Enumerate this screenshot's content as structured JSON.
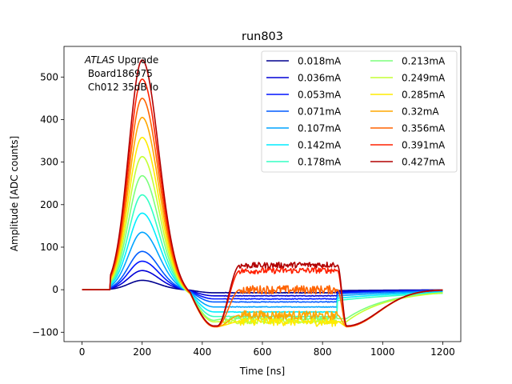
{
  "chart_data": {
    "type": "line",
    "title": "run803",
    "xlabel": "Time [ns]",
    "ylabel": "Amplitude [ADC counts]",
    "xlim": [
      -60,
      1260
    ],
    "ylim": [
      -122,
      572
    ],
    "xticks": [
      0,
      200,
      400,
      600,
      800,
      1000,
      1200
    ],
    "yticks": [
      -100,
      0,
      100,
      200,
      300,
      400,
      500
    ],
    "grid": false,
    "legend_position": "top-right",
    "legend_columns": 2,
    "annotation": {
      "italic": "ATLAS",
      "line1_rest": " Upgrade",
      "line2": " Board186975",
      "line3": " Ch012 35dB lo"
    },
    "series": [
      {
        "name": "0.018mA",
        "color": "#00008f",
        "peak": 22,
        "under": -8,
        "plateau": -8
      },
      {
        "name": "0.036mA",
        "color": "#0000d6",
        "peak": 45,
        "under": -16,
        "plateau": -14
      },
      {
        "name": "0.053mA",
        "color": "#0014ff",
        "peak": 67,
        "under": -24,
        "plateau": -20
      },
      {
        "name": "0.071mA",
        "color": "#005cff",
        "peak": 90,
        "under": -32,
        "plateau": -27
      },
      {
        "name": "0.107mA",
        "color": "#00a4ff",
        "peak": 135,
        "under": -45,
        "plateau": -38
      },
      {
        "name": "0.142mA",
        "color": "#00ecff",
        "peak": 180,
        "under": -58,
        "plateau": -48
      },
      {
        "name": "0.178mA",
        "color": "#34ffc4",
        "peak": 223,
        "under": -70,
        "plateau": -58
      },
      {
        "name": "0.213mA",
        "color": "#7cff7c",
        "peak": 268,
        "under": -80,
        "plateau": -68
      },
      {
        "name": "0.249mA",
        "color": "#c4ff34",
        "peak": 313,
        "under": -84,
        "plateau": -75
      },
      {
        "name": "0.285mA",
        "color": "#ffeb00",
        "peak": 358,
        "under": -86,
        "plateau": -75
      },
      {
        "name": "0.32mA",
        "color": "#ffa700",
        "peak": 405,
        "under": -87,
        "plateau": -60
      },
      {
        "name": "0.356mA",
        "color": "#ff6300",
        "peak": 450,
        "under": -87,
        "plateau": 0
      },
      {
        "name": "0.391mA",
        "color": "#ff2000",
        "peak": 495,
        "under": -86,
        "plateau": 45
      },
      {
        "name": "0.427mA",
        "color": "#b20000",
        "peak": 540,
        "under": -85,
        "plateau": 58
      }
    ]
  }
}
